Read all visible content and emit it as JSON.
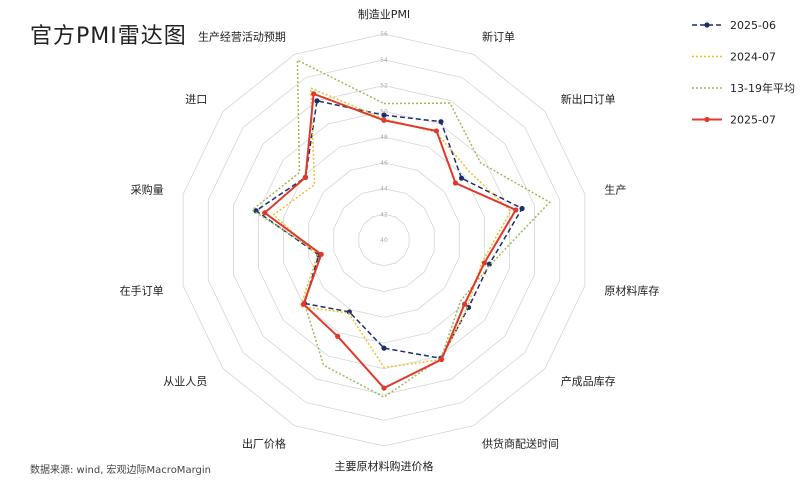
{
  "chart_data": {
    "type": "radar",
    "title": "官方PMI雷达图",
    "source": "数据来源: wind, 宏观边际MacroMargin",
    "categories": [
      "制造业PMI",
      "新订单",
      "新出口订单",
      "生产",
      "原材料库存",
      "产成品库存",
      "供货商配送时间",
      "主要原材料购进价格",
      "出厂价格",
      "从业人员",
      "在手订单",
      "采购量",
      "进口",
      "生产经营活动预期"
    ],
    "rlim": [
      40,
      56
    ],
    "ticks": [
      40,
      42,
      44,
      46,
      48,
      50,
      52,
      54,
      56
    ],
    "grid": true,
    "legend_position": "right",
    "series": [
      {
        "name": "2025-06",
        "color": "#1f2d6b",
        "style": "dashed",
        "marker": true,
        "values": [
          49.7,
          50.2,
          47.7,
          51.0,
          48.4,
          48.4,
          50.2,
          48.4,
          46.2,
          47.9,
          45.2,
          50.2,
          47.8,
          52.0
        ]
      },
      {
        "name": "2024-07",
        "color": "#f0c030",
        "style": "dotted",
        "marker": false,
        "values": [
          49.4,
          49.3,
          48.5,
          50.1,
          47.8,
          48.3,
          50.3,
          49.9,
          46.3,
          48.3,
          45.3,
          48.8,
          46.9,
          53.1
        ]
      },
      {
        "name": "13-19年平均",
        "color": "#9bbb59",
        "style": "dotted",
        "marker": false,
        "values": [
          50.6,
          51.8,
          49.6,
          53.2,
          48.5,
          47.6,
          50.2,
          52.2,
          50.8,
          47.9,
          45.0,
          50.5,
          48.4,
          55.5
        ]
      },
      {
        "name": "2025-07",
        "color": "#e0392b",
        "style": "solid",
        "marker": true,
        "values": [
          49.3,
          49.4,
          47.1,
          50.5,
          48.0,
          48.0,
          50.3,
          51.5,
          48.3,
          48.0,
          45.0,
          49.5,
          47.8,
          52.6
        ]
      }
    ]
  }
}
